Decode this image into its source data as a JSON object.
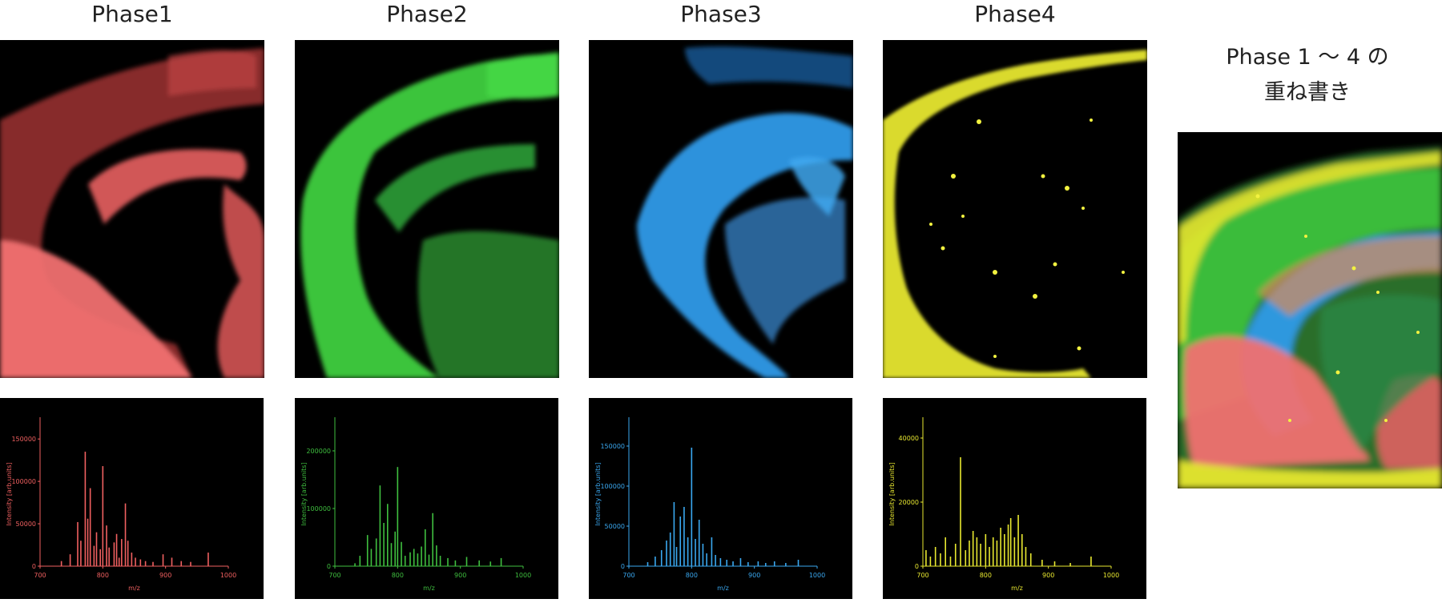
{
  "panels": [
    {
      "title": "Phase1",
      "color": "#f06060"
    },
    {
      "title": "Phase2",
      "color": "#3fbf3f"
    },
    {
      "title": "Phase3",
      "color": "#3aa8f0"
    },
    {
      "title": "Phase4",
      "color": "#e8e830"
    }
  ],
  "overlay": {
    "title_line1": "Phase 1 ～ 4 の",
    "title_line2": "重ね書き"
  },
  "chart_data": [
    {
      "type": "bar",
      "title": "Phase1",
      "xlabel": "m/z",
      "ylabel": "Intensity [arb.units]",
      "xlim": [
        700,
        1000
      ],
      "ylim": [
        0,
        170000
      ],
      "xticks": [
        700,
        800,
        900,
        1000
      ],
      "yticks": [
        0,
        50000,
        100000,
        150000
      ],
      "ytick_labels": [
        "0",
        "50000",
        "100000",
        "150000"
      ],
      "series": [
        {
          "color": "#f06060",
          "x": [
            734,
            748,
            760,
            765,
            772,
            776,
            780,
            786,
            790,
            796,
            800,
            806,
            810,
            818,
            822,
            826,
            830,
            836,
            840,
            846,
            852,
            860,
            868,
            880,
            896,
            910,
            925,
            940,
            968
          ],
          "values": [
            6000,
            14000,
            52000,
            30000,
            135000,
            56000,
            92000,
            24000,
            40000,
            20000,
            118000,
            48000,
            22000,
            28000,
            38000,
            10000,
            32000,
            74000,
            30000,
            16000,
            10000,
            8000,
            6000,
            5000,
            14000,
            10000,
            6000,
            5000,
            16000
          ]
        }
      ]
    },
    {
      "type": "bar",
      "title": "Phase2",
      "xlabel": "m/z",
      "ylabel": "Intensity [arb.units]",
      "xlim": [
        700,
        1000
      ],
      "ylim": [
        0,
        250000
      ],
      "xticks": [
        700,
        800,
        900,
        1000
      ],
      "yticks": [
        0,
        100000,
        200000
      ],
      "ytick_labels": [
        "0",
        "100000",
        "200000"
      ],
      "series": [
        {
          "color": "#3fbf3f",
          "x": [
            732,
            740,
            752,
            758,
            766,
            772,
            778,
            784,
            790,
            796,
            800,
            806,
            812,
            820,
            826,
            832,
            838,
            844,
            850,
            856,
            862,
            868,
            880,
            892,
            910,
            930,
            948,
            965
          ],
          "values": [
            5000,
            18000,
            54000,
            30000,
            48000,
            140000,
            75000,
            108000,
            40000,
            60000,
            172000,
            42000,
            18000,
            24000,
            30000,
            22000,
            34000,
            64000,
            20000,
            92000,
            36000,
            18000,
            14000,
            10000,
            16000,
            10000,
            8000,
            14000
          ]
        }
      ]
    },
    {
      "type": "bar",
      "title": "Phase3",
      "xlabel": "m/z",
      "ylabel": "Intensity [arb.units]",
      "xlim": [
        700,
        1000
      ],
      "ylim": [
        0,
        180000
      ],
      "xticks": [
        700,
        800,
        900,
        1000
      ],
      "yticks": [
        0,
        50000,
        100000,
        150000
      ],
      "ytick_labels": [
        "0",
        "50000",
        "100000",
        "150000"
      ],
      "series": [
        {
          "color": "#3aa8f0",
          "x": [
            730,
            742,
            752,
            760,
            766,
            772,
            776,
            782,
            788,
            794,
            800,
            806,
            812,
            818,
            824,
            832,
            838,
            846,
            856,
            866,
            878,
            890,
            906,
            918,
            932,
            950,
            970
          ],
          "values": [
            5000,
            12000,
            20000,
            32000,
            42000,
            80000,
            24000,
            62000,
            74000,
            36000,
            148000,
            34000,
            58000,
            28000,
            16000,
            36000,
            14000,
            10000,
            8000,
            6000,
            10000,
            5000,
            6000,
            4000,
            6000,
            4000,
            8000
          ]
        }
      ]
    },
    {
      "type": "bar",
      "title": "Phase4",
      "xlabel": "m/z",
      "ylabel": "Intensity [arb.units]",
      "xlim": [
        700,
        1000
      ],
      "ylim": [
        0,
        45000
      ],
      "xticks": [
        700,
        800,
        900,
        1000
      ],
      "yticks": [
        0,
        20000,
        40000
      ],
      "ytick_labels": [
        "0",
        "20000",
        "40000"
      ],
      "series": [
        {
          "color": "#e8e830",
          "x": [
            705,
            712,
            720,
            728,
            736,
            744,
            752,
            760,
            768,
            774,
            780,
            786,
            792,
            800,
            806,
            812,
            818,
            824,
            830,
            836,
            840,
            846,
            852,
            858,
            864,
            872,
            890,
            910,
            935,
            968
          ],
          "values": [
            5000,
            3000,
            6000,
            4000,
            9000,
            3000,
            7000,
            34000,
            5000,
            8000,
            11000,
            9000,
            7000,
            10000,
            6000,
            9000,
            8000,
            12000,
            10000,
            13000,
            15000,
            9000,
            16000,
            10000,
            6000,
            4000,
            2000,
            1500,
            1000,
            3000
          ]
        }
      ]
    }
  ]
}
